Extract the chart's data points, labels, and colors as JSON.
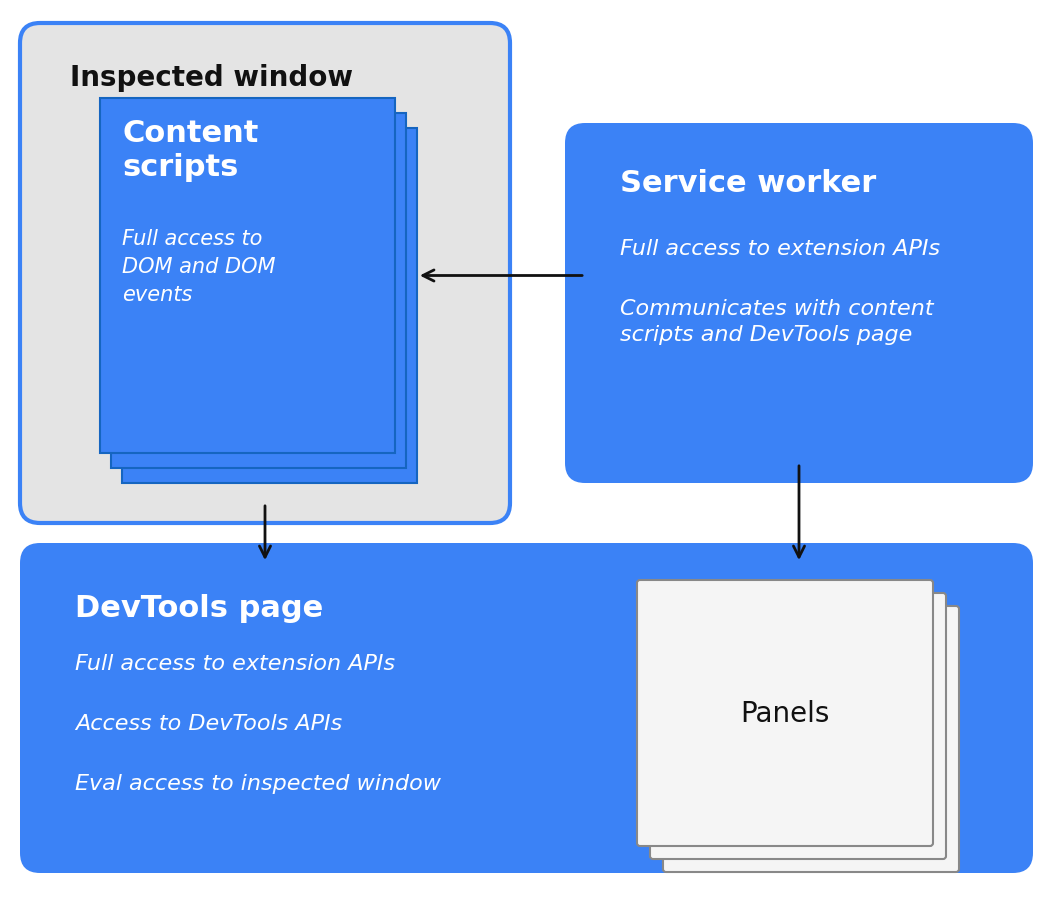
{
  "bg_color": "#ffffff",
  "blue": "#3b82f6",
  "light_gray": "#e4e4e4",
  "white": "#ffffff",
  "off_white": "#f5f5f5",
  "black": "#111111",
  "panel_bg": "#f8f8f8",
  "panel_edge": "#aaaaaa",
  "iw_title": "Inspected window",
  "iw_bg": "#e4e4e4",
  "iw_border": "#3b82f6",
  "sw_title": "Service worker",
  "sw_line1": "Full access to extension APIs",
  "sw_line2": "Communicates with content\nscripts and DevTools page",
  "sw_bg": "#3b82f6",
  "dt_title": "DevTools page",
  "dt_line1": "Full access to extension APIs",
  "dt_line2": "Access to DevTools APIs",
  "dt_line3": "Eval access to inspected window",
  "dt_bg": "#3b82f6",
  "cs_title": "Content\nscripts",
  "cs_body": "Full access to\nDOM and DOM\nevents",
  "cs_bg": "#3b82f6",
  "panels_label": "Panels"
}
